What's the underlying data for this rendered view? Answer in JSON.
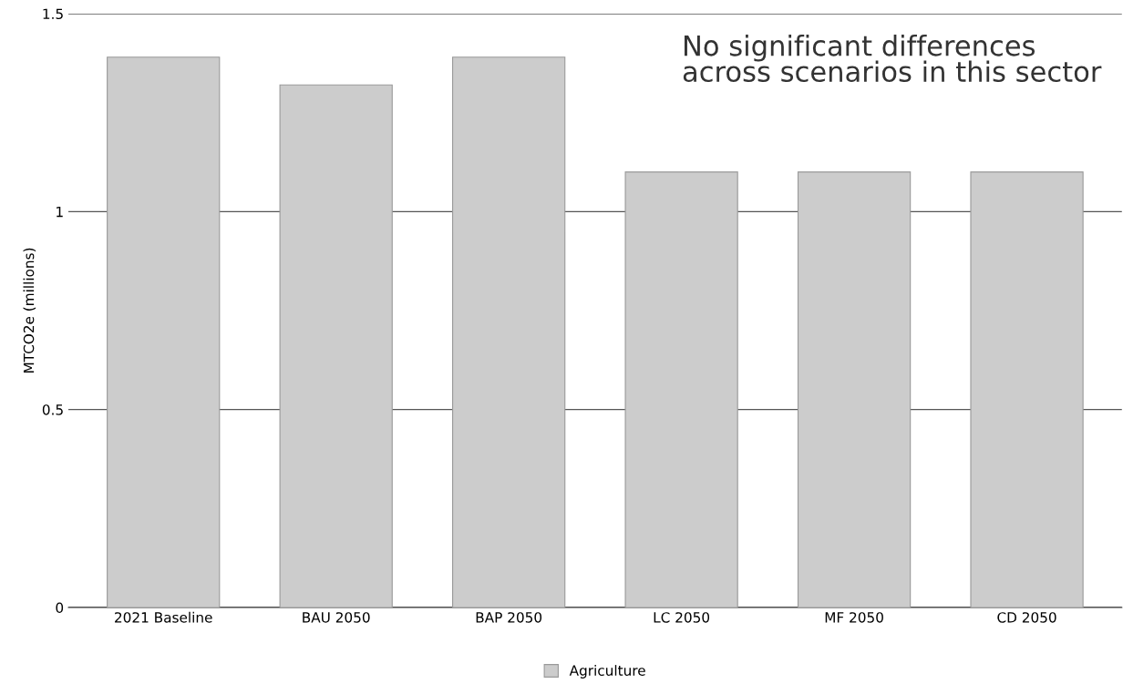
{
  "chart_data": {
    "type": "bar",
    "ylabel": "MTCO2e (millions)",
    "categories": [
      "2021 Baseline",
      "BAU 2050",
      "BAP 2050",
      "LC 2050",
      "MF 2050",
      "CD 2050"
    ],
    "series": [
      {
        "name": "Agriculture",
        "color": "#cccccc",
        "values": [
          1.39,
          1.32,
          1.39,
          1.1,
          1.1,
          1.1
        ]
      }
    ],
    "ylim": [
      0,
      1.5
    ],
    "yticks": [
      0,
      0.5,
      1,
      1.5
    ],
    "grid": "y",
    "legend": "bottom",
    "annotations": [
      "No significant differences\nacross scenarios in this sector"
    ]
  }
}
